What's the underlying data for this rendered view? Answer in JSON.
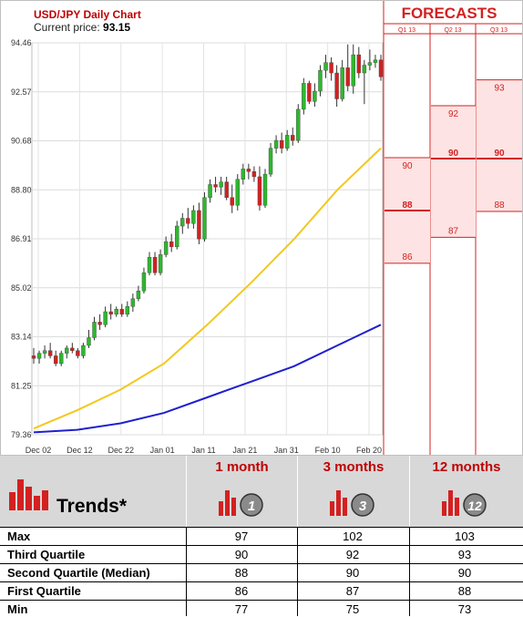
{
  "header": {
    "title": "USD/JPY Daily Chart",
    "price_label": "Current price:",
    "price_value": "93.15"
  },
  "forecasts": {
    "title": "FORECASTS",
    "columns": [
      "Q1 13",
      "Q2 13",
      "Q3 13"
    ],
    "levels": [
      {
        "label": "90",
        "columns": [
          0
        ]
      },
      {
        "label": "88",
        "columns": [
          0,
          2
        ]
      },
      {
        "label": "86",
        "columns": [
          0
        ]
      },
      {
        "label": "92",
        "columns": [
          1
        ]
      },
      {
        "label": "90",
        "columns": [
          1,
          2
        ]
      },
      {
        "label": "87",
        "columns": [
          1
        ]
      },
      {
        "label": "93",
        "columns": [
          2
        ]
      }
    ],
    "bold_levels": [
      "88",
      "90",
      "90"
    ]
  },
  "chart_data": {
    "type": "candlestick",
    "y_ticks": [
      "94.46",
      "92.57",
      "90.68",
      "88.80",
      "86.91",
      "85.02",
      "83.14",
      "81.25",
      "79.36"
    ],
    "ylim": [
      79.36,
      94.46
    ],
    "x_ticks": [
      "Dec 02",
      "Dec 12",
      "Dec 22",
      "Jan 01",
      "Jan 11",
      "Jan 21",
      "Jan 31",
      "Feb 10",
      "Feb 20"
    ],
    "candles": [
      {
        "o": 82.4,
        "h": 82.7,
        "l": 82.1,
        "c": 82.3
      },
      {
        "o": 82.3,
        "h": 82.6,
        "l": 82.1,
        "c": 82.5
      },
      {
        "o": 82.5,
        "h": 82.8,
        "l": 82.3,
        "c": 82.6
      },
      {
        "o": 82.6,
        "h": 82.9,
        "l": 82.3,
        "c": 82.4
      },
      {
        "o": 82.4,
        "h": 82.6,
        "l": 82.0,
        "c": 82.1
      },
      {
        "o": 82.1,
        "h": 82.6,
        "l": 82.0,
        "c": 82.5
      },
      {
        "o": 82.5,
        "h": 82.8,
        "l": 82.3,
        "c": 82.7
      },
      {
        "o": 82.7,
        "h": 82.9,
        "l": 82.5,
        "c": 82.6
      },
      {
        "o": 82.6,
        "h": 82.7,
        "l": 82.3,
        "c": 82.4
      },
      {
        "o": 82.4,
        "h": 82.9,
        "l": 82.3,
        "c": 82.8
      },
      {
        "o": 82.8,
        "h": 83.4,
        "l": 82.7,
        "c": 83.1
      },
      {
        "o": 83.1,
        "h": 83.9,
        "l": 83.0,
        "c": 83.7
      },
      {
        "o": 83.7,
        "h": 84.0,
        "l": 83.4,
        "c": 83.6
      },
      {
        "o": 83.6,
        "h": 84.3,
        "l": 83.5,
        "c": 84.1
      },
      {
        "o": 84.1,
        "h": 84.4,
        "l": 83.8,
        "c": 84.0
      },
      {
        "o": 84.0,
        "h": 84.3,
        "l": 83.9,
        "c": 84.2
      },
      {
        "o": 84.2,
        "h": 84.4,
        "l": 83.9,
        "c": 84.0
      },
      {
        "o": 84.0,
        "h": 84.5,
        "l": 83.9,
        "c": 84.3
      },
      {
        "o": 84.3,
        "h": 84.8,
        "l": 84.1,
        "c": 84.6
      },
      {
        "o": 84.6,
        "h": 85.1,
        "l": 84.5,
        "c": 84.9
      },
      {
        "o": 84.9,
        "h": 85.8,
        "l": 84.8,
        "c": 85.6
      },
      {
        "o": 85.6,
        "h": 86.4,
        "l": 85.5,
        "c": 86.2
      },
      {
        "o": 86.2,
        "h": 86.4,
        "l": 85.5,
        "c": 85.6
      },
      {
        "o": 85.6,
        "h": 86.5,
        "l": 85.5,
        "c": 86.3
      },
      {
        "o": 86.3,
        "h": 87.0,
        "l": 86.2,
        "c": 86.8
      },
      {
        "o": 86.8,
        "h": 87.1,
        "l": 86.4,
        "c": 86.6
      },
      {
        "o": 86.6,
        "h": 87.6,
        "l": 86.5,
        "c": 87.4
      },
      {
        "o": 87.4,
        "h": 87.9,
        "l": 87.1,
        "c": 87.7
      },
      {
        "o": 87.7,
        "h": 88.1,
        "l": 87.3,
        "c": 87.5
      },
      {
        "o": 87.5,
        "h": 88.2,
        "l": 87.3,
        "c": 88.0
      },
      {
        "o": 88.0,
        "h": 88.3,
        "l": 86.7,
        "c": 86.9
      },
      {
        "o": 86.9,
        "h": 88.7,
        "l": 86.8,
        "c": 88.5
      },
      {
        "o": 88.5,
        "h": 89.2,
        "l": 88.3,
        "c": 89.0
      },
      {
        "o": 89.0,
        "h": 89.3,
        "l": 88.7,
        "c": 88.9
      },
      {
        "o": 88.9,
        "h": 89.3,
        "l": 88.6,
        "c": 89.1
      },
      {
        "o": 89.1,
        "h": 89.3,
        "l": 88.4,
        "c": 88.5
      },
      {
        "o": 88.5,
        "h": 89.0,
        "l": 87.9,
        "c": 88.2
      },
      {
        "o": 88.2,
        "h": 89.4,
        "l": 88.0,
        "c": 89.2
      },
      {
        "o": 89.2,
        "h": 89.8,
        "l": 89.0,
        "c": 89.6
      },
      {
        "o": 89.6,
        "h": 89.8,
        "l": 89.2,
        "c": 89.5
      },
      {
        "o": 89.5,
        "h": 89.7,
        "l": 89.1,
        "c": 89.3
      },
      {
        "o": 89.3,
        "h": 89.7,
        "l": 88.0,
        "c": 88.2
      },
      {
        "o": 88.2,
        "h": 89.6,
        "l": 88.1,
        "c": 89.4
      },
      {
        "o": 89.4,
        "h": 90.6,
        "l": 89.3,
        "c": 90.4
      },
      {
        "o": 90.4,
        "h": 90.9,
        "l": 90.2,
        "c": 90.7
      },
      {
        "o": 90.7,
        "h": 91.0,
        "l": 90.2,
        "c": 90.4
      },
      {
        "o": 90.4,
        "h": 91.1,
        "l": 90.3,
        "c": 90.9
      },
      {
        "o": 90.9,
        "h": 91.2,
        "l": 90.5,
        "c": 90.7
      },
      {
        "o": 90.7,
        "h": 92.1,
        "l": 90.6,
        "c": 91.9
      },
      {
        "o": 91.9,
        "h": 93.1,
        "l": 91.7,
        "c": 92.9
      },
      {
        "o": 92.9,
        "h": 93.0,
        "l": 92.1,
        "c": 92.2
      },
      {
        "o": 92.2,
        "h": 92.9,
        "l": 92.0,
        "c": 92.6
      },
      {
        "o": 92.6,
        "h": 93.6,
        "l": 92.4,
        "c": 93.4
      },
      {
        "o": 93.4,
        "h": 94.0,
        "l": 93.1,
        "c": 93.7
      },
      {
        "o": 93.7,
        "h": 93.9,
        "l": 93.0,
        "c": 93.3
      },
      {
        "o": 93.3,
        "h": 93.6,
        "l": 92.0,
        "c": 92.3
      },
      {
        "o": 92.3,
        "h": 93.8,
        "l": 92.2,
        "c": 93.5
      },
      {
        "o": 93.5,
        "h": 94.4,
        "l": 92.6,
        "c": 92.8
      },
      {
        "o": 92.8,
        "h": 94.4,
        "l": 92.5,
        "c": 94.0
      },
      {
        "o": 94.0,
        "h": 94.3,
        "l": 93.1,
        "c": 93.3
      },
      {
        "o": 93.3,
        "h": 93.8,
        "l": 92.1,
        "c": 93.6
      },
      {
        "o": 93.6,
        "h": 94.2,
        "l": 93.4,
        "c": 93.7
      },
      {
        "o": 93.7,
        "h": 94.0,
        "l": 93.5,
        "c": 93.8
      },
      {
        "o": 93.8,
        "h": 94.0,
        "l": 93.0,
        "c": 93.15
      }
    ],
    "ma_yellow": [
      79.6,
      80.3,
      81.1,
      82.1,
      83.6,
      85.2,
      86.9,
      88.8,
      90.4
    ],
    "ma_blue": [
      79.45,
      79.55,
      79.8,
      80.2,
      80.8,
      81.4,
      82.0,
      82.8,
      83.6
    ]
  },
  "table": {
    "trend_label": "Trends*",
    "periods": [
      {
        "label": "1 month",
        "badge": "1"
      },
      {
        "label": "3 months",
        "badge": "3"
      },
      {
        "label": "12 months",
        "badge": "12"
      }
    ],
    "rows": [
      {
        "label": "Max",
        "values": [
          "97",
          "102",
          "103"
        ]
      },
      {
        "label": "Third Quartile",
        "values": [
          "90",
          "92",
          "93"
        ]
      },
      {
        "label": "Second Quartile (Median)",
        "values": [
          "88",
          "90",
          "90"
        ]
      },
      {
        "label": "First Quartile",
        "values": [
          "86",
          "87",
          "88"
        ]
      },
      {
        "label": "Min",
        "values": [
          "77",
          "75",
          "73"
        ]
      }
    ]
  },
  "colors": {
    "up": "#2db82d",
    "down": "#d42020",
    "ma_yellow": "#f2c81e",
    "ma_blue": "#1f1fd0",
    "forecast_red": "#d42020",
    "forecast_fill": "#fde3e3"
  }
}
